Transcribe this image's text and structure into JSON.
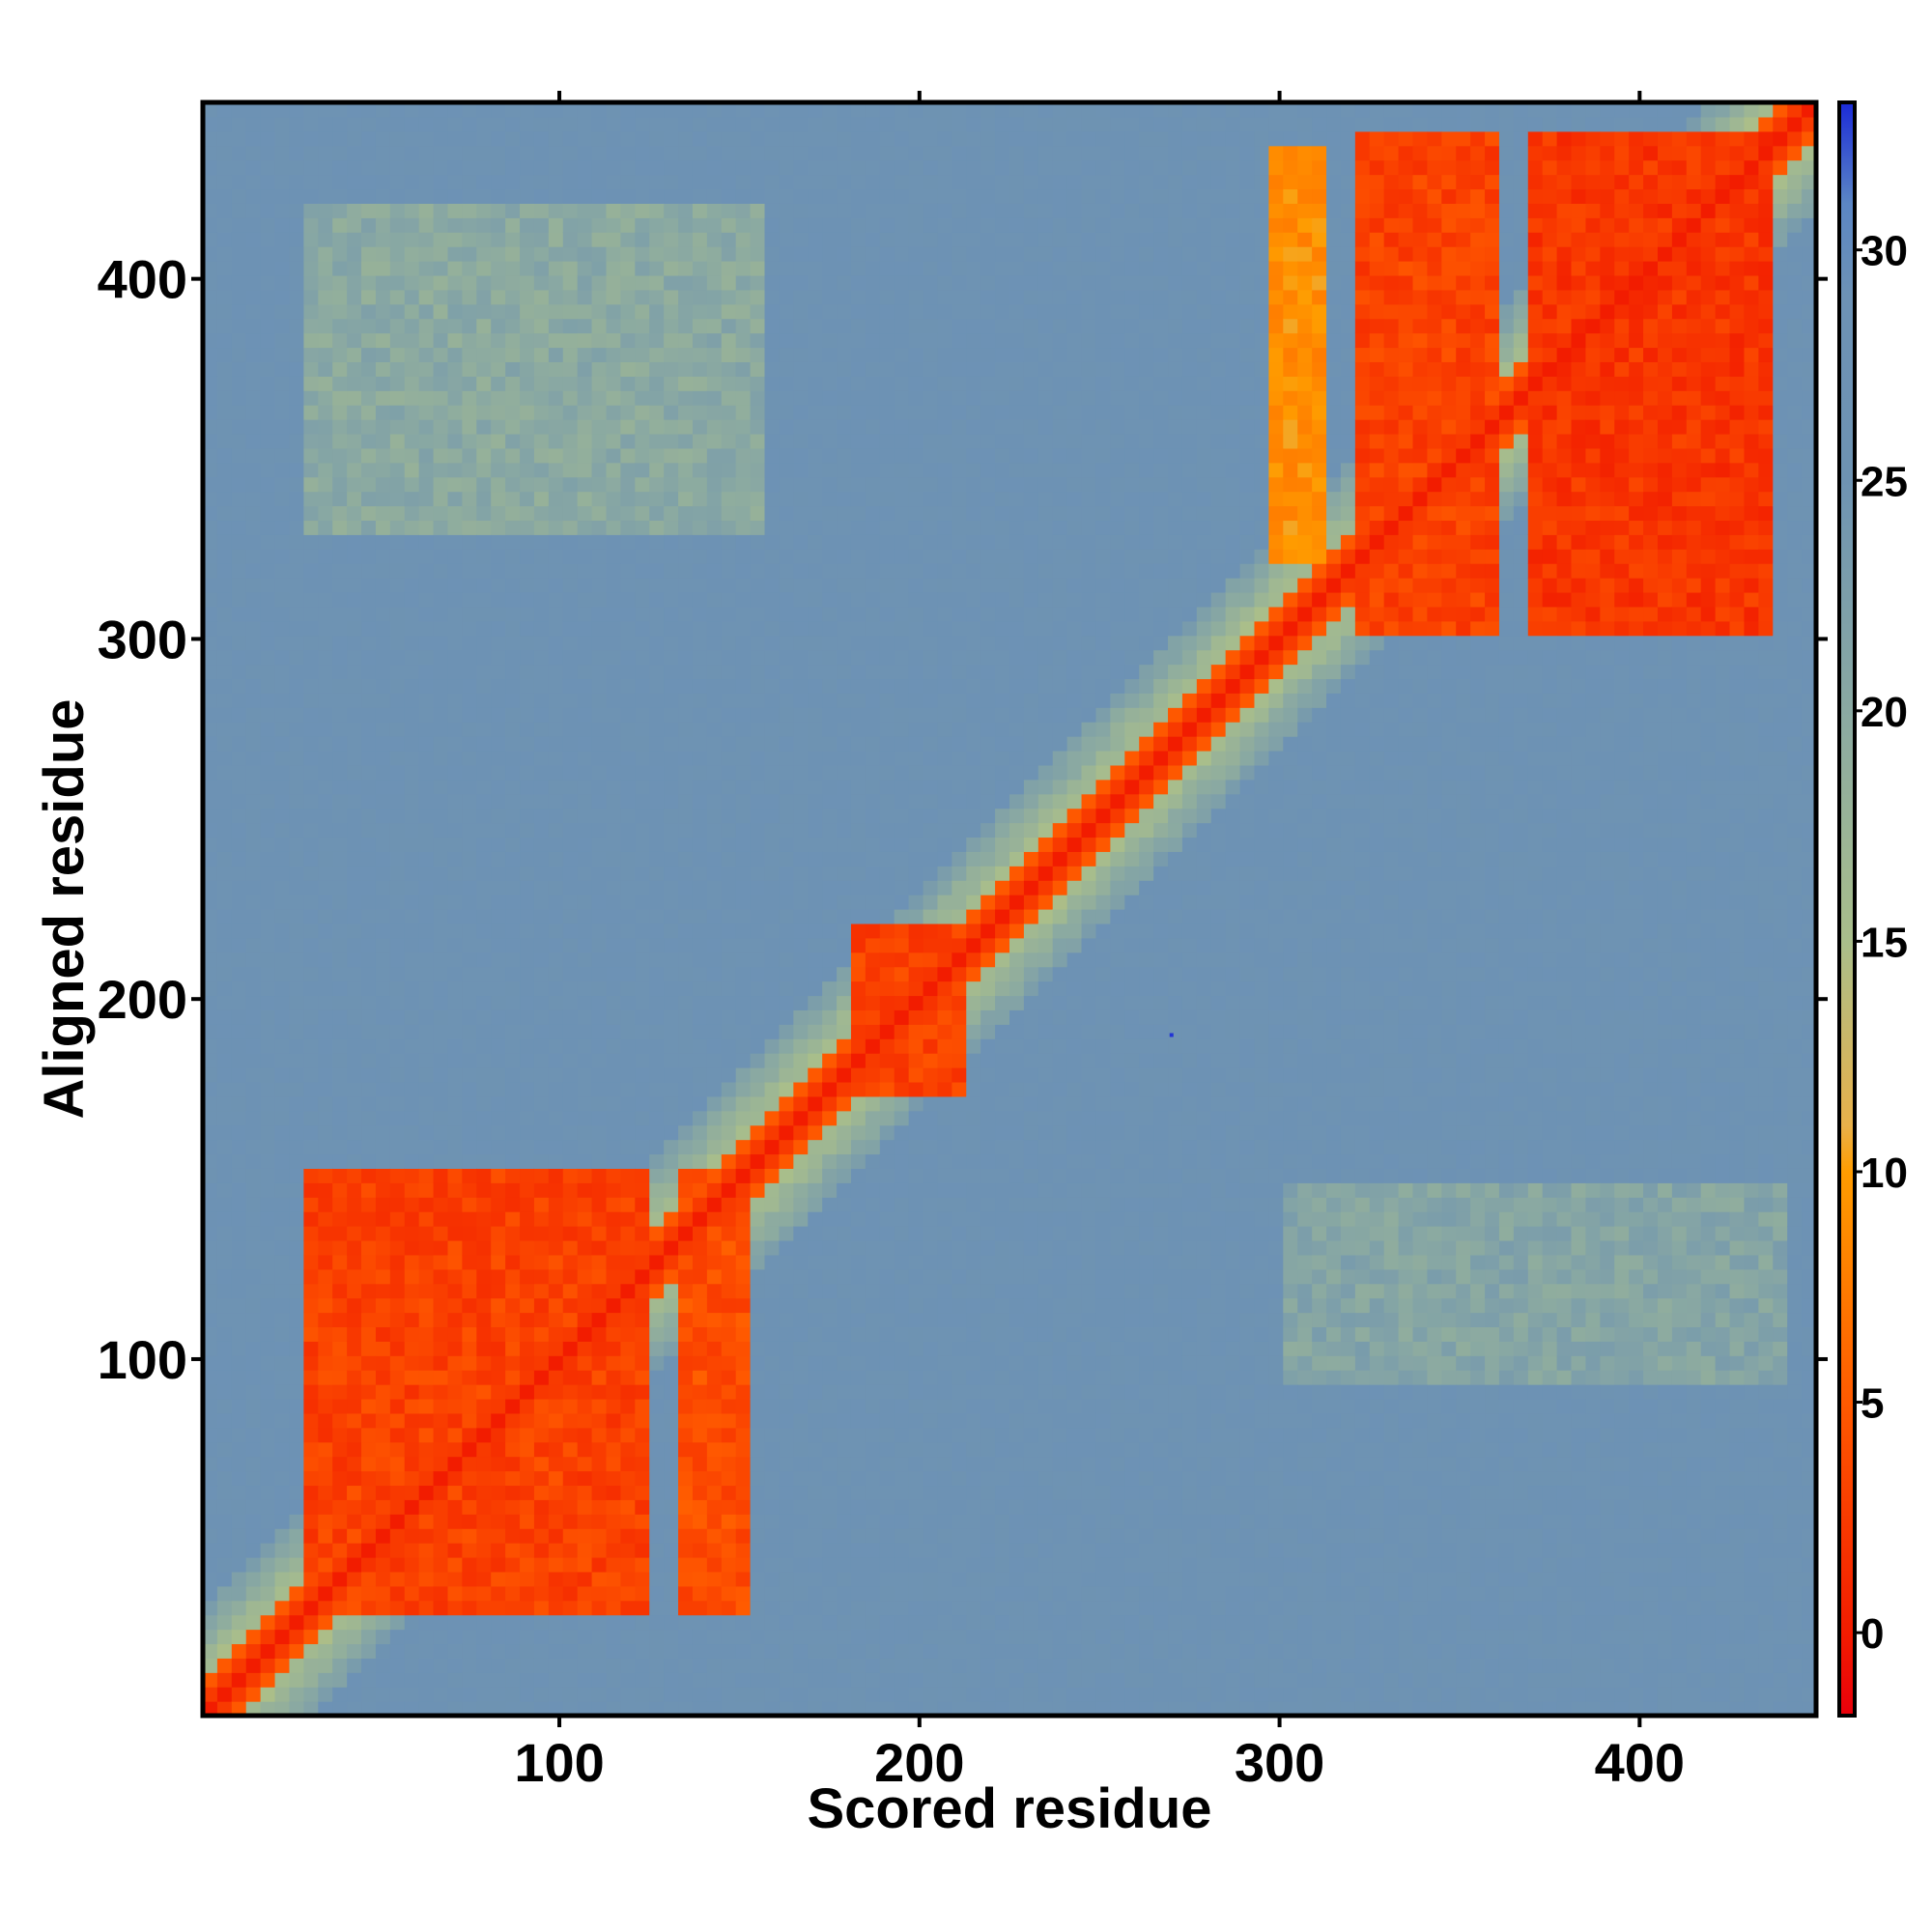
{
  "chart_data": {
    "type": "heatmap",
    "title": "",
    "xlabel": "Scored residue",
    "ylabel": "Aligned residue",
    "xlim": [
      1,
      449
    ],
    "ylim": [
      1,
      449
    ],
    "x_ticks": [
      100,
      200,
      300,
      400
    ],
    "y_ticks": [
      100,
      200,
      300,
      400
    ],
    "colorbar": {
      "ticks": [
        0,
        5,
        10,
        15,
        20,
        25,
        30
      ],
      "range": [
        -1.8,
        33.2
      ],
      "stops": [
        {
          "value": -1.8,
          "color": "#e8000b"
        },
        {
          "value": 0,
          "color": "#f21c00"
        },
        {
          "value": 5,
          "color": "#ff5a00"
        },
        {
          "value": 10,
          "color": "#ff9c00"
        },
        {
          "value": 11,
          "color": "#e8b14a"
        },
        {
          "value": 15,
          "color": "#a9be8b"
        },
        {
          "value": 20,
          "color": "#8aa9a2"
        },
        {
          "value": 25,
          "color": "#6e93b2"
        },
        {
          "value": 29,
          "color": "#6d92b5"
        },
        {
          "value": 31,
          "color": "#5b86c4"
        },
        {
          "value": 33.2,
          "color": "#1b2bd8"
        }
      ]
    },
    "background_value": 27,
    "features": {
      "diagonal_value": 0,
      "diagonal_halfwidth_residues": 4,
      "blocks": [
        {
          "x": [
            30,
            124
          ],
          "y": [
            30,
            154
          ],
          "value": 3
        },
        {
          "x": [
            133,
            152
          ],
          "y": [
            30,
            154
          ],
          "value": 4
        },
        {
          "x": [
            30,
            124
          ],
          "y": [
            133,
            154
          ],
          "value": 3
        },
        {
          "x": [
            180,
            212
          ],
          "y": [
            175,
            219
          ],
          "value": 3
        },
        {
          "x": [
            320,
            362
          ],
          "y": [
            300,
            440
          ],
          "value": 3
        },
        {
          "x": [
            370,
            436
          ],
          "y": [
            300,
            440
          ],
          "value": 2
        },
        {
          "x": [
            298,
            312
          ],
          "y": [
            320,
            435
          ],
          "value": 9
        }
      ],
      "light_bands": [
        {
          "x": [
            30,
            155
          ],
          "y": [
            330,
            420
          ],
          "value": 20
        },
        {
          "x": [
            300,
            440
          ],
          "y": [
            95,
            150
          ],
          "value": 21
        }
      ],
      "outlier_point": {
        "x": 270,
        "y": 190,
        "value": 33
      }
    }
  }
}
